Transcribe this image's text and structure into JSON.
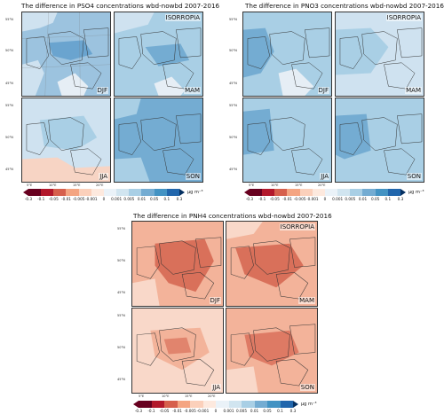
{
  "figures": [
    {
      "title": "The difference in PSO4 concentrations wbd-nowbd 2007-2016",
      "scheme": "blue"
    },
    {
      "title": "The difference in PNO3  concentrations wbd-nowbd 2007-2016",
      "scheme": "blue"
    },
    {
      "title": "The difference in PNH4 concentrations wbd-nowbd 2007-2016",
      "scheme": "red"
    }
  ],
  "panel_labels": {
    "tl": "ISORROPIA",
    "djf": "DJF",
    "mam": "MAM",
    "jja": "JJA",
    "son": "SON"
  },
  "lat_labels": [
    "55°N",
    "50°N",
    "45°N"
  ],
  "lon_labels": [
    "5°E",
    "10°E",
    "15°E",
    "20°E"
  ],
  "colorbar": {
    "ticks": [
      "-0.3",
      "-0.1",
      "-0.05",
      "-0.01",
      "-0.005",
      "-0.001",
      "0",
      "0.001",
      "0.005",
      "0.01",
      "0.05",
      "0.1",
      "0.3"
    ],
    "unit": "μg m⁻³",
    "colors": [
      "#67001f",
      "#b2182b",
      "#d6604d",
      "#f4a582",
      "#fbd0bb",
      "#fde9de",
      "#eaf2f8",
      "#d1e5f0",
      "#a9cfe5",
      "#74acd2",
      "#4393c3",
      "#2166ac"
    ],
    "under": "#67001f",
    "over": "#053061"
  },
  "map_colors": {
    "blue_base": "#9cc3df",
    "blue_dark": "#5e9ccb",
    "blue_light": "#cfe2f0",
    "blue_sea": "#e6eef5",
    "red_base": "#f3b39a",
    "red_dark": "#d9705a",
    "red_light": "#f9d8c9",
    "red_sea": "#fae9e0",
    "pale_red": "#f7d4c4"
  }
}
